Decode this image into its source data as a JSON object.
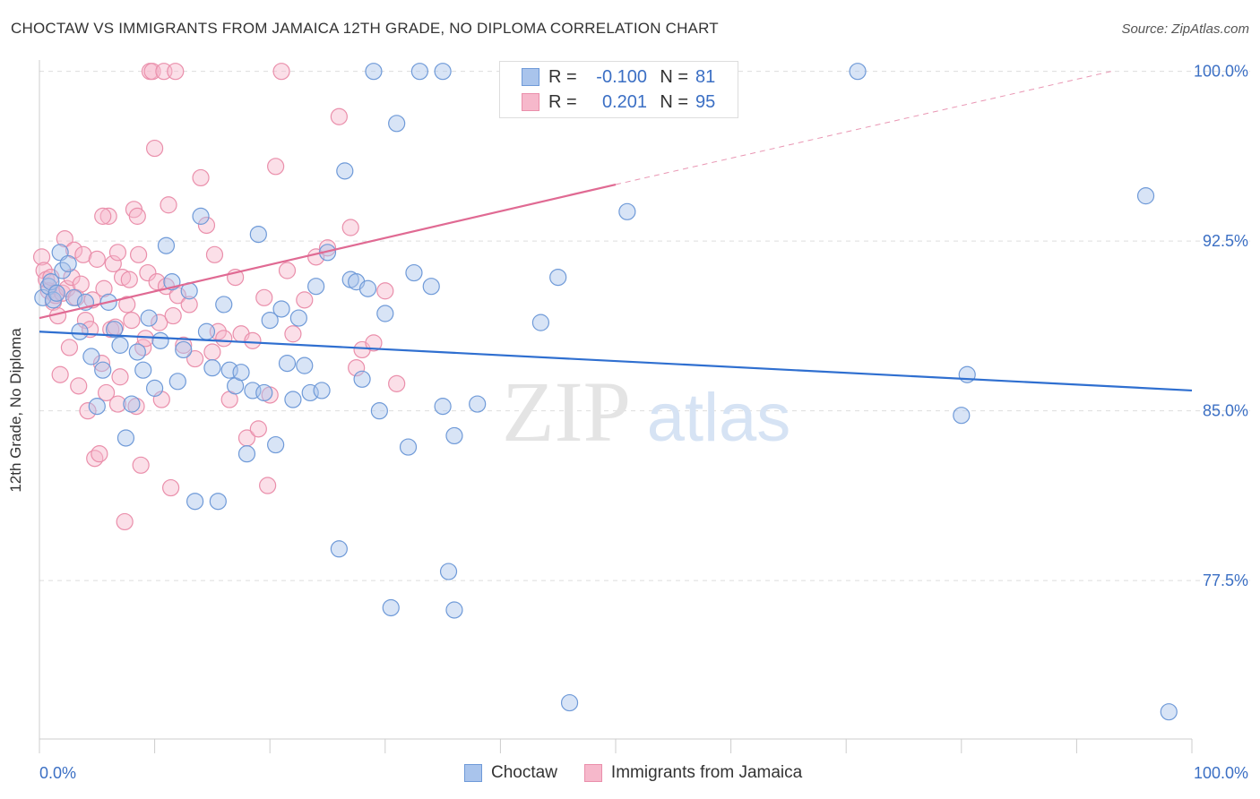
{
  "header": {
    "title": "CHOCTAW VS IMMIGRANTS FROM JAMAICA 12TH GRADE, NO DIPLOMA CORRELATION CHART",
    "source": "Source: ZipAtlas.com"
  },
  "legend_top": {
    "rows": [
      {
        "r_label": "R =",
        "r_value": "-0.100",
        "n_label": "N =",
        "n_value": "81"
      },
      {
        "r_label": "R =",
        "r_value": "0.201",
        "n_label": "N =",
        "n_value": "95"
      }
    ]
  },
  "watermark": {
    "part1": "ZIP",
    "part2": "atlas"
  },
  "colors": {
    "choctaw_fill": "#a9c4ec",
    "choctaw_stroke": "#6f9ad8",
    "choctaw_line": "#2f6fd0",
    "jamaica_fill": "#f6b8cb",
    "jamaica_stroke": "#ea8fab",
    "jamaica_line": "#e06a93",
    "axis_label": "#3b6fc4",
    "grid": "#dddddd"
  },
  "chart_data": {
    "type": "scatter",
    "title": "CHOCTAW VS IMMIGRANTS FROM JAMAICA 12TH GRADE, NO DIPLOMA CORRELATION CHART",
    "xlabel": "",
    "ylabel": "12th Grade, No Diploma",
    "xlim": [
      0,
      100
    ],
    "ylim": [
      70.5,
      100.7
    ],
    "x_tick_labels": [
      "0.0%",
      "100.0%"
    ],
    "y_ticks": [
      77.5,
      85.0,
      92.5,
      100.0
    ],
    "y_tick_labels": [
      "77.5%",
      "85.0%",
      "92.5%",
      "100.0%"
    ],
    "grid": true,
    "legend_position": "bottom",
    "series": [
      {
        "name": "Choctaw",
        "r": -0.1,
        "n": 81,
        "trend": {
          "x0": 0,
          "y0": 88.5,
          "x1": 100,
          "y1": 85.9
        },
        "points": [
          [
            0.3,
            90.0
          ],
          [
            0.8,
            90.5
          ],
          [
            1.0,
            90.7
          ],
          [
            1.2,
            89.9
          ],
          [
            1.5,
            90.2
          ],
          [
            1.8,
            92.0
          ],
          [
            2.0,
            91.2
          ],
          [
            2.5,
            91.5
          ],
          [
            3.0,
            90.0
          ],
          [
            3.5,
            88.5
          ],
          [
            4.0,
            89.8
          ],
          [
            4.5,
            87.4
          ],
          [
            5.0,
            85.2
          ],
          [
            5.5,
            86.8
          ],
          [
            6.0,
            89.8
          ],
          [
            6.5,
            88.6
          ],
          [
            7.0,
            87.9
          ],
          [
            7.5,
            83.8
          ],
          [
            8.0,
            85.3
          ],
          [
            8.5,
            87.6
          ],
          [
            9.0,
            86.8
          ],
          [
            9.5,
            89.1
          ],
          [
            10.0,
            86.0
          ],
          [
            10.5,
            88.1
          ],
          [
            11.0,
            92.3
          ],
          [
            11.5,
            90.7
          ],
          [
            12.0,
            86.3
          ],
          [
            12.5,
            87.7
          ],
          [
            13.0,
            90.3
          ],
          [
            13.5,
            81.0
          ],
          [
            14.0,
            93.6
          ],
          [
            14.5,
            88.5
          ],
          [
            15.0,
            86.9
          ],
          [
            15.5,
            81.0
          ],
          [
            16.0,
            89.7
          ],
          [
            16.5,
            86.8
          ],
          [
            17.0,
            86.1
          ],
          [
            17.5,
            86.7
          ],
          [
            18.0,
            83.1
          ],
          [
            18.5,
            85.9
          ],
          [
            19.0,
            92.8
          ],
          [
            19.5,
            85.8
          ],
          [
            20.0,
            89.0
          ],
          [
            20.5,
            83.5
          ],
          [
            21.0,
            89.5
          ],
          [
            21.5,
            87.1
          ],
          [
            22.0,
            85.5
          ],
          [
            22.5,
            89.1
          ],
          [
            23.0,
            87.0
          ],
          [
            23.5,
            85.8
          ],
          [
            24.0,
            90.5
          ],
          [
            24.5,
            85.9
          ],
          [
            25.0,
            92.0
          ],
          [
            26.0,
            78.9
          ],
          [
            26.5,
            95.6
          ],
          [
            27.0,
            90.8
          ],
          [
            27.5,
            90.7
          ],
          [
            28.0,
            86.4
          ],
          [
            28.5,
            90.4
          ],
          [
            29.0,
            100.0
          ],
          [
            29.5,
            85.0
          ],
          [
            30.0,
            89.3
          ],
          [
            30.5,
            76.3
          ],
          [
            31.0,
            97.7
          ],
          [
            32.0,
            83.4
          ],
          [
            32.5,
            91.1
          ],
          [
            33.0,
            100.0
          ],
          [
            34.0,
            90.5
          ],
          [
            35.0,
            85.2
          ],
          [
            35.5,
            77.9
          ],
          [
            35.0,
            100.0
          ],
          [
            36.0,
            83.9
          ],
          [
            36.0,
            76.2
          ],
          [
            38.0,
            85.3
          ],
          [
            43.5,
            88.9
          ],
          [
            45.0,
            90.9
          ],
          [
            46.0,
            72.1
          ],
          [
            51.0,
            93.8
          ],
          [
            71.0,
            100.0
          ],
          [
            80.0,
            84.8
          ],
          [
            80.5,
            86.6
          ],
          [
            96.0,
            94.5
          ],
          [
            98.0,
            71.7
          ]
        ]
      },
      {
        "name": "Immigrants from Jamaica",
        "r": 0.201,
        "n": 95,
        "trend": {
          "x0": 0,
          "y0": 89.1,
          "x1": 50,
          "y1": 95.0,
          "dash_x1": 93,
          "dash_y1": 100.0
        },
        "points": [
          [
            0.2,
            91.8
          ],
          [
            0.4,
            91.2
          ],
          [
            0.6,
            90.8
          ],
          [
            0.8,
            90.3
          ],
          [
            1.0,
            90.9
          ],
          [
            1.2,
            89.8
          ],
          [
            1.4,
            90.1
          ],
          [
            1.6,
            89.2
          ],
          [
            1.8,
            86.6
          ],
          [
            2.0,
            90.2
          ],
          [
            2.2,
            92.6
          ],
          [
            2.4,
            90.4
          ],
          [
            2.6,
            87.8
          ],
          [
            2.8,
            90.9
          ],
          [
            3.0,
            92.1
          ],
          [
            3.2,
            90.0
          ],
          [
            3.4,
            86.1
          ],
          [
            3.6,
            90.6
          ],
          [
            3.8,
            91.9
          ],
          [
            4.0,
            89.0
          ],
          [
            4.2,
            85.0
          ],
          [
            4.4,
            88.6
          ],
          [
            4.6,
            89.9
          ],
          [
            4.8,
            82.9
          ],
          [
            5.0,
            91.7
          ],
          [
            5.2,
            83.1
          ],
          [
            5.4,
            87.1
          ],
          [
            5.6,
            90.4
          ],
          [
            5.8,
            85.8
          ],
          [
            6.0,
            93.6
          ],
          [
            6.2,
            88.6
          ],
          [
            6.4,
            91.5
          ],
          [
            6.6,
            88.7
          ],
          [
            6.8,
            85.3
          ],
          [
            7.0,
            86.5
          ],
          [
            7.2,
            90.9
          ],
          [
            7.4,
            80.1
          ],
          [
            7.6,
            89.7
          ],
          [
            7.8,
            90.8
          ],
          [
            8.0,
            89.0
          ],
          [
            8.2,
            93.9
          ],
          [
            8.4,
            85.2
          ],
          [
            8.6,
            91.9
          ],
          [
            8.8,
            82.6
          ],
          [
            9.0,
            87.8
          ],
          [
            9.2,
            88.2
          ],
          [
            9.4,
            91.1
          ],
          [
            9.6,
            100.0
          ],
          [
            9.8,
            100.0
          ],
          [
            10.0,
            96.6
          ],
          [
            10.2,
            90.7
          ],
          [
            10.4,
            88.9
          ],
          [
            10.6,
            85.5
          ],
          [
            10.8,
            100.0
          ],
          [
            11.0,
            90.5
          ],
          [
            11.2,
            94.1
          ],
          [
            11.4,
            81.6
          ],
          [
            11.6,
            89.2
          ],
          [
            11.8,
            100.0
          ],
          [
            12.0,
            90.1
          ],
          [
            12.5,
            87.9
          ],
          [
            13.0,
            89.7
          ],
          [
            13.5,
            87.3
          ],
          [
            14.0,
            95.3
          ],
          [
            14.5,
            93.2
          ],
          [
            15.0,
            87.6
          ],
          [
            15.2,
            91.9
          ],
          [
            15.5,
            88.5
          ],
          [
            16.0,
            88.2
          ],
          [
            16.5,
            85.5
          ],
          [
            17.0,
            90.9
          ],
          [
            17.5,
            88.4
          ],
          [
            18.0,
            83.8
          ],
          [
            18.5,
            88.1
          ],
          [
            19.0,
            84.2
          ],
          [
            19.5,
            90.0
          ],
          [
            19.8,
            81.7
          ],
          [
            20.0,
            85.7
          ],
          [
            20.5,
            95.8
          ],
          [
            21.0,
            100.0
          ],
          [
            21.5,
            91.2
          ],
          [
            22.0,
            88.4
          ],
          [
            23.0,
            89.9
          ],
          [
            24.0,
            91.8
          ],
          [
            25.0,
            92.2
          ],
          [
            26.0,
            98.0
          ],
          [
            27.0,
            93.1
          ],
          [
            27.5,
            86.9
          ],
          [
            28.0,
            87.7
          ],
          [
            29.0,
            88.0
          ],
          [
            30.0,
            90.3
          ],
          [
            31.0,
            86.2
          ],
          [
            5.5,
            93.6
          ],
          [
            6.8,
            92.0
          ],
          [
            8.5,
            93.6
          ]
        ]
      }
    ]
  },
  "axes": {
    "y_label": "12th Grade, No Diploma",
    "x_min_label": "0.0%",
    "x_max_label": "100.0%"
  },
  "legend_bottom": {
    "items": [
      "Choctaw",
      "Immigrants from Jamaica"
    ]
  }
}
